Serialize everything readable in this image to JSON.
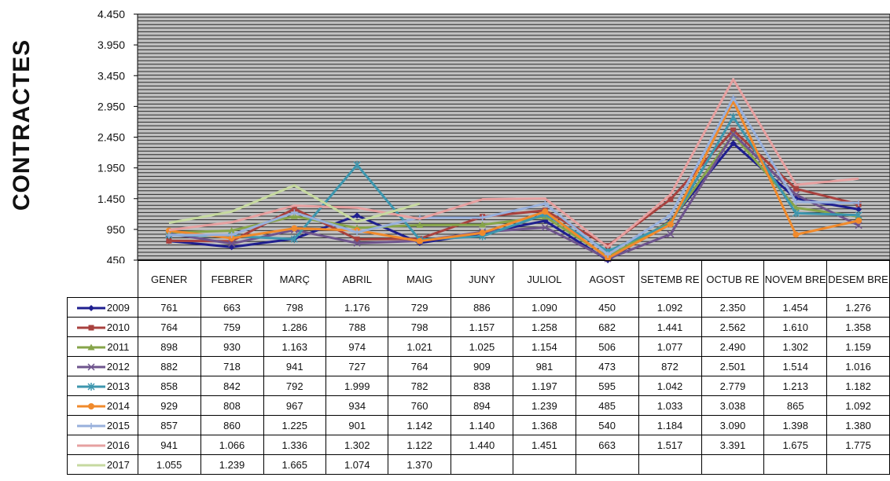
{
  "chart_data": {
    "type": "line",
    "ylabel": "CONTRACTES",
    "ylim": [
      450,
      4450
    ],
    "yticks": [
      "4.450",
      "3.950",
      "3.450",
      "2.950",
      "2.450",
      "1.950",
      "1.450",
      "950",
      "450"
    ],
    "ytick_values": [
      4450,
      3950,
      3450,
      2950,
      2450,
      1950,
      1450,
      950,
      450
    ],
    "categories": [
      "GENER",
      "FEBRER",
      "MARÇ",
      "ABRIL",
      "MAIG",
      "JUNY",
      "JULIOL",
      "AGOST",
      "SETEMBRE",
      "OCTUBRE",
      "NOVEMBRE",
      "DESEMBRE"
    ],
    "category_labels": [
      "GENER",
      "FEBRER",
      "MARÇ",
      "ABRIL",
      "MAIG",
      "JUNY",
      "JULIOL",
      "AGOST",
      "SETEMB RE",
      "OCTUB RE",
      "NOVEM BRE",
      "DESEM BRE"
    ],
    "grid": true,
    "legend": "data-table",
    "series": [
      {
        "name": "2009",
        "color": "#1f1f8f",
        "marker": "diamond",
        "values": [
          761,
          663,
          798,
          1176,
          729,
          886,
          1090,
          450,
          1092,
          2350,
          1454,
          1276
        ],
        "labels": [
          "761",
          "663",
          "798",
          "1.176",
          "729",
          "886",
          "1.090",
          "450",
          "1.092",
          "2.350",
          "1.454",
          "1.276"
        ]
      },
      {
        "name": "2010",
        "color": "#a8423f",
        "marker": "square",
        "values": [
          764,
          759,
          1286,
          788,
          798,
          1157,
          1258,
          682,
          1441,
          2562,
          1610,
          1358
        ],
        "labels": [
          "764",
          "759",
          "1.286",
          "788",
          "798",
          "1.157",
          "1.258",
          "682",
          "1.441",
          "2.562",
          "1.610",
          "1.358"
        ]
      },
      {
        "name": "2011",
        "color": "#86a44a",
        "marker": "triangle",
        "values": [
          898,
          930,
          1163,
          974,
          1021,
          1025,
          1154,
          506,
          1077,
          2490,
          1302,
          1159
        ],
        "labels": [
          "898",
          "930",
          "1.163",
          "974",
          "1.021",
          "1.025",
          "1.154",
          "506",
          "1.077",
          "2.490",
          "1.302",
          "1.159"
        ]
      },
      {
        "name": "2012",
        "color": "#6e548d",
        "marker": "x",
        "values": [
          882,
          718,
          941,
          727,
          764,
          909,
          981,
          473,
          872,
          2501,
          1514,
          1016
        ],
        "labels": [
          "882",
          "718",
          "941",
          "727",
          "764",
          "909",
          "981",
          "473",
          "872",
          "2.501",
          "1.514",
          "1.016"
        ]
      },
      {
        "name": "2013",
        "color": "#3d96ae",
        "marker": "star",
        "values": [
          858,
          842,
          792,
          1999,
          782,
          838,
          1197,
          595,
          1042,
          2779,
          1213,
          1182
        ],
        "labels": [
          "858",
          "842",
          "792",
          "1.999",
          "782",
          "838",
          "1.197",
          "595",
          "1.042",
          "2.779",
          "1.213",
          "1.182"
        ]
      },
      {
        "name": "2014",
        "color": "#f08a2c",
        "marker": "circle",
        "values": [
          929,
          808,
          967,
          934,
          760,
          894,
          1239,
          485,
          1033,
          3038,
          865,
          1092
        ],
        "labels": [
          "929",
          "808",
          "967",
          "934",
          "760",
          "894",
          "1.239",
          "485",
          "1.033",
          "3.038",
          "865",
          "1.092"
        ]
      },
      {
        "name": "2015",
        "color": "#98b0dc",
        "marker": "plus",
        "values": [
          857,
          860,
          1225,
          901,
          1142,
          1140,
          1368,
          540,
          1184,
          3090,
          1398,
          1380
        ],
        "labels": [
          "857",
          "860",
          "1.225",
          "901",
          "1.142",
          "1.140",
          "1.368",
          "540",
          "1.184",
          "3.090",
          "1.398",
          "1.380"
        ]
      },
      {
        "name": "2016",
        "color": "#e6a0a0",
        "marker": "none",
        "values": [
          941,
          1066,
          1336,
          1302,
          1122,
          1440,
          1451,
          663,
          1517,
          3391,
          1675,
          1775
        ],
        "labels": [
          "941",
          "1.066",
          "1.336",
          "1.302",
          "1.122",
          "1.440",
          "1.451",
          "663",
          "1.517",
          "3.391",
          "1.675",
          "1.775"
        ]
      },
      {
        "name": "2017",
        "color": "#c6d9a0",
        "marker": "none",
        "values": [
          1055,
          1239,
          1665,
          1074,
          1370,
          null,
          null,
          null,
          null,
          null,
          null,
          null
        ],
        "labels": [
          "1.055",
          "1.239",
          "1.665",
          "1.074",
          "1.370",
          "",
          "",
          "",
          "",
          "",
          "",
          ""
        ]
      }
    ]
  }
}
